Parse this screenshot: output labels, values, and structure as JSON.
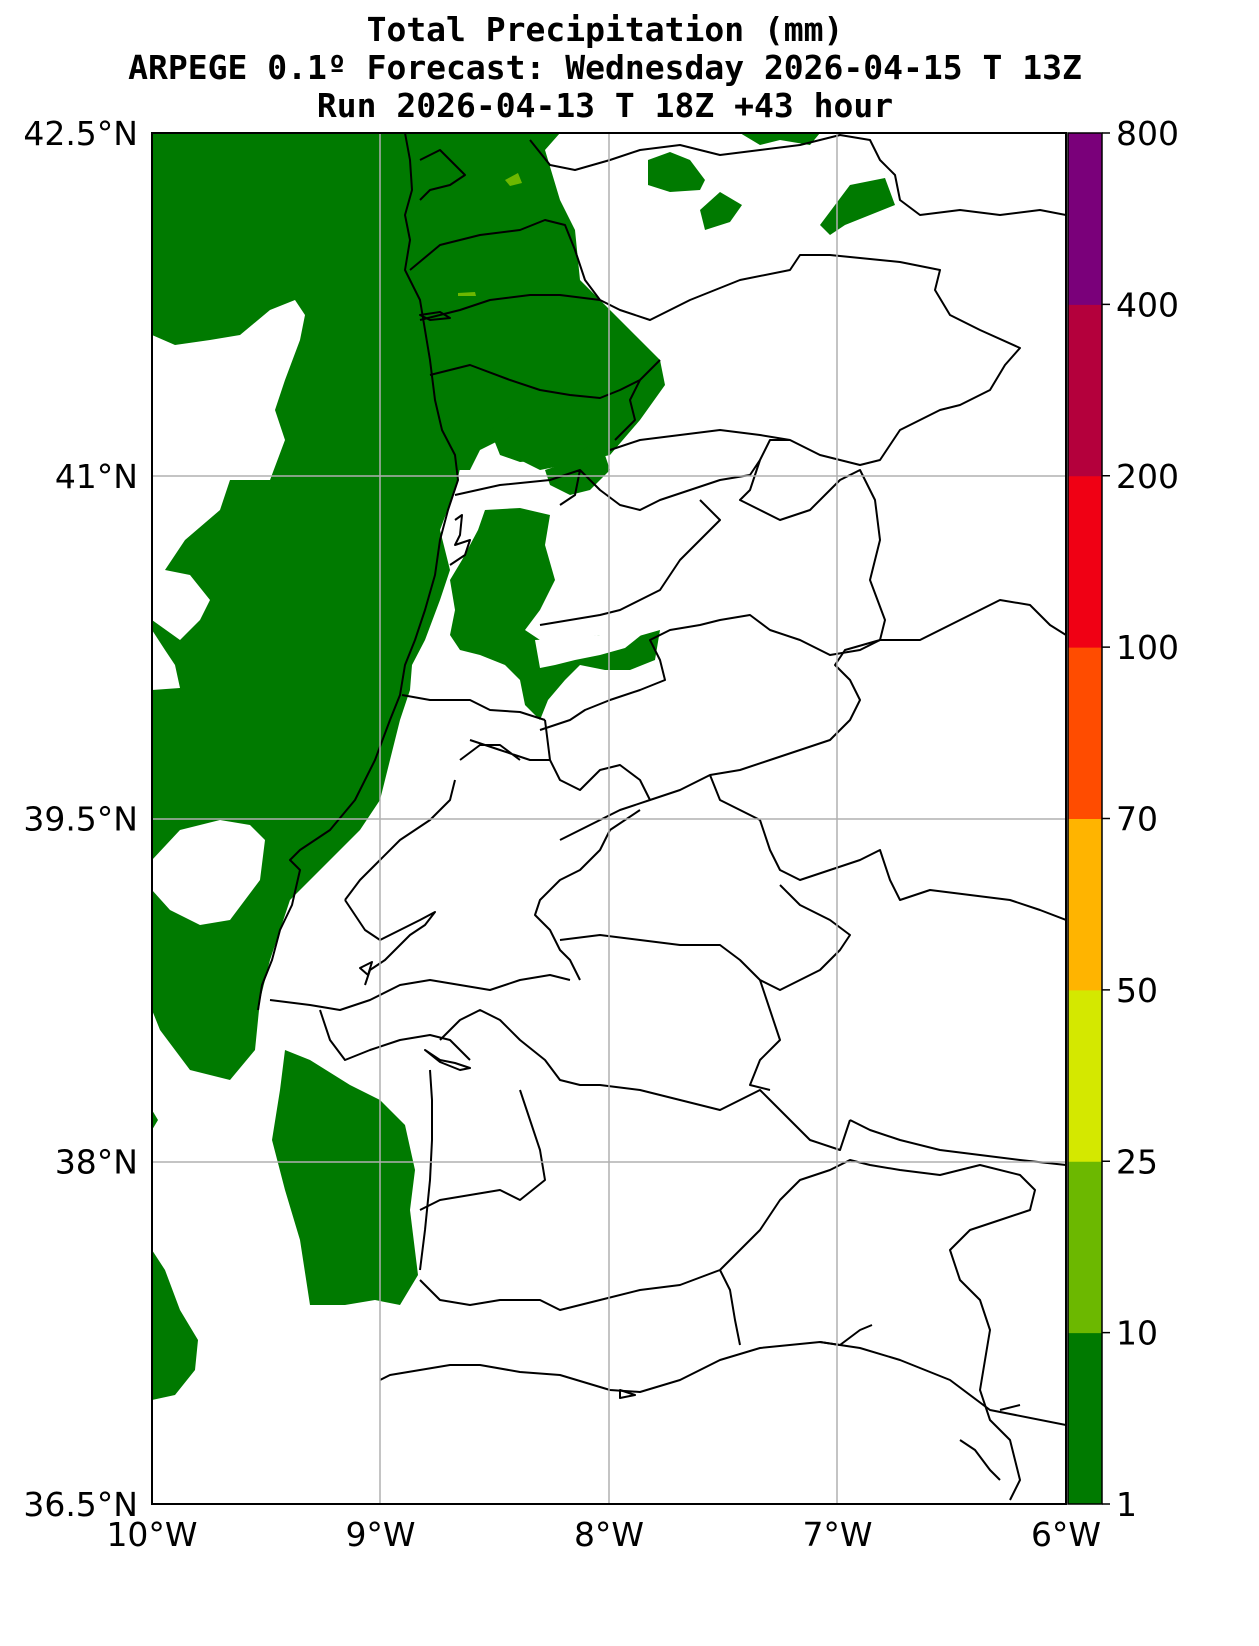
{
  "title": {
    "line1": "Total Precipitation (mm)",
    "line2": "ARPEGE 0.1º Forecast: Wednesday 2026-04-15 T 13Z",
    "line3": "Run 2026-04-13 T 18Z +43 hour"
  },
  "map": {
    "lon_range": [
      -10,
      -6
    ],
    "lat_range": [
      36.5,
      42.5
    ],
    "gridlines": true,
    "lat_labels": [
      "42.5°N",
      "41°N",
      "39.5°N",
      "38°N",
      "36.5°N"
    ],
    "lon_labels": [
      "10°W",
      "9°W",
      "8°W",
      "7°W",
      "6°W"
    ],
    "lat_values": [
      42.5,
      41,
      39.5,
      38,
      36.5
    ],
    "lon_values": [
      -10,
      -9,
      -8,
      -7,
      -6
    ]
  },
  "colorbar": {
    "levels": [
      "1",
      "10",
      "25",
      "50",
      "70",
      "100",
      "200",
      "400",
      "800"
    ],
    "colors": [
      "#007a00",
      "#6cb800",
      "#d4e800",
      "#ffb400",
      "#ff4c00",
      "#f00014",
      "#b4003c",
      "#7a007a"
    ]
  },
  "colors": {
    "precip_1_10": "#007a00",
    "precip_10_25": "#6cb800",
    "border": "#000000",
    "grid": "#b0b0b0"
  }
}
